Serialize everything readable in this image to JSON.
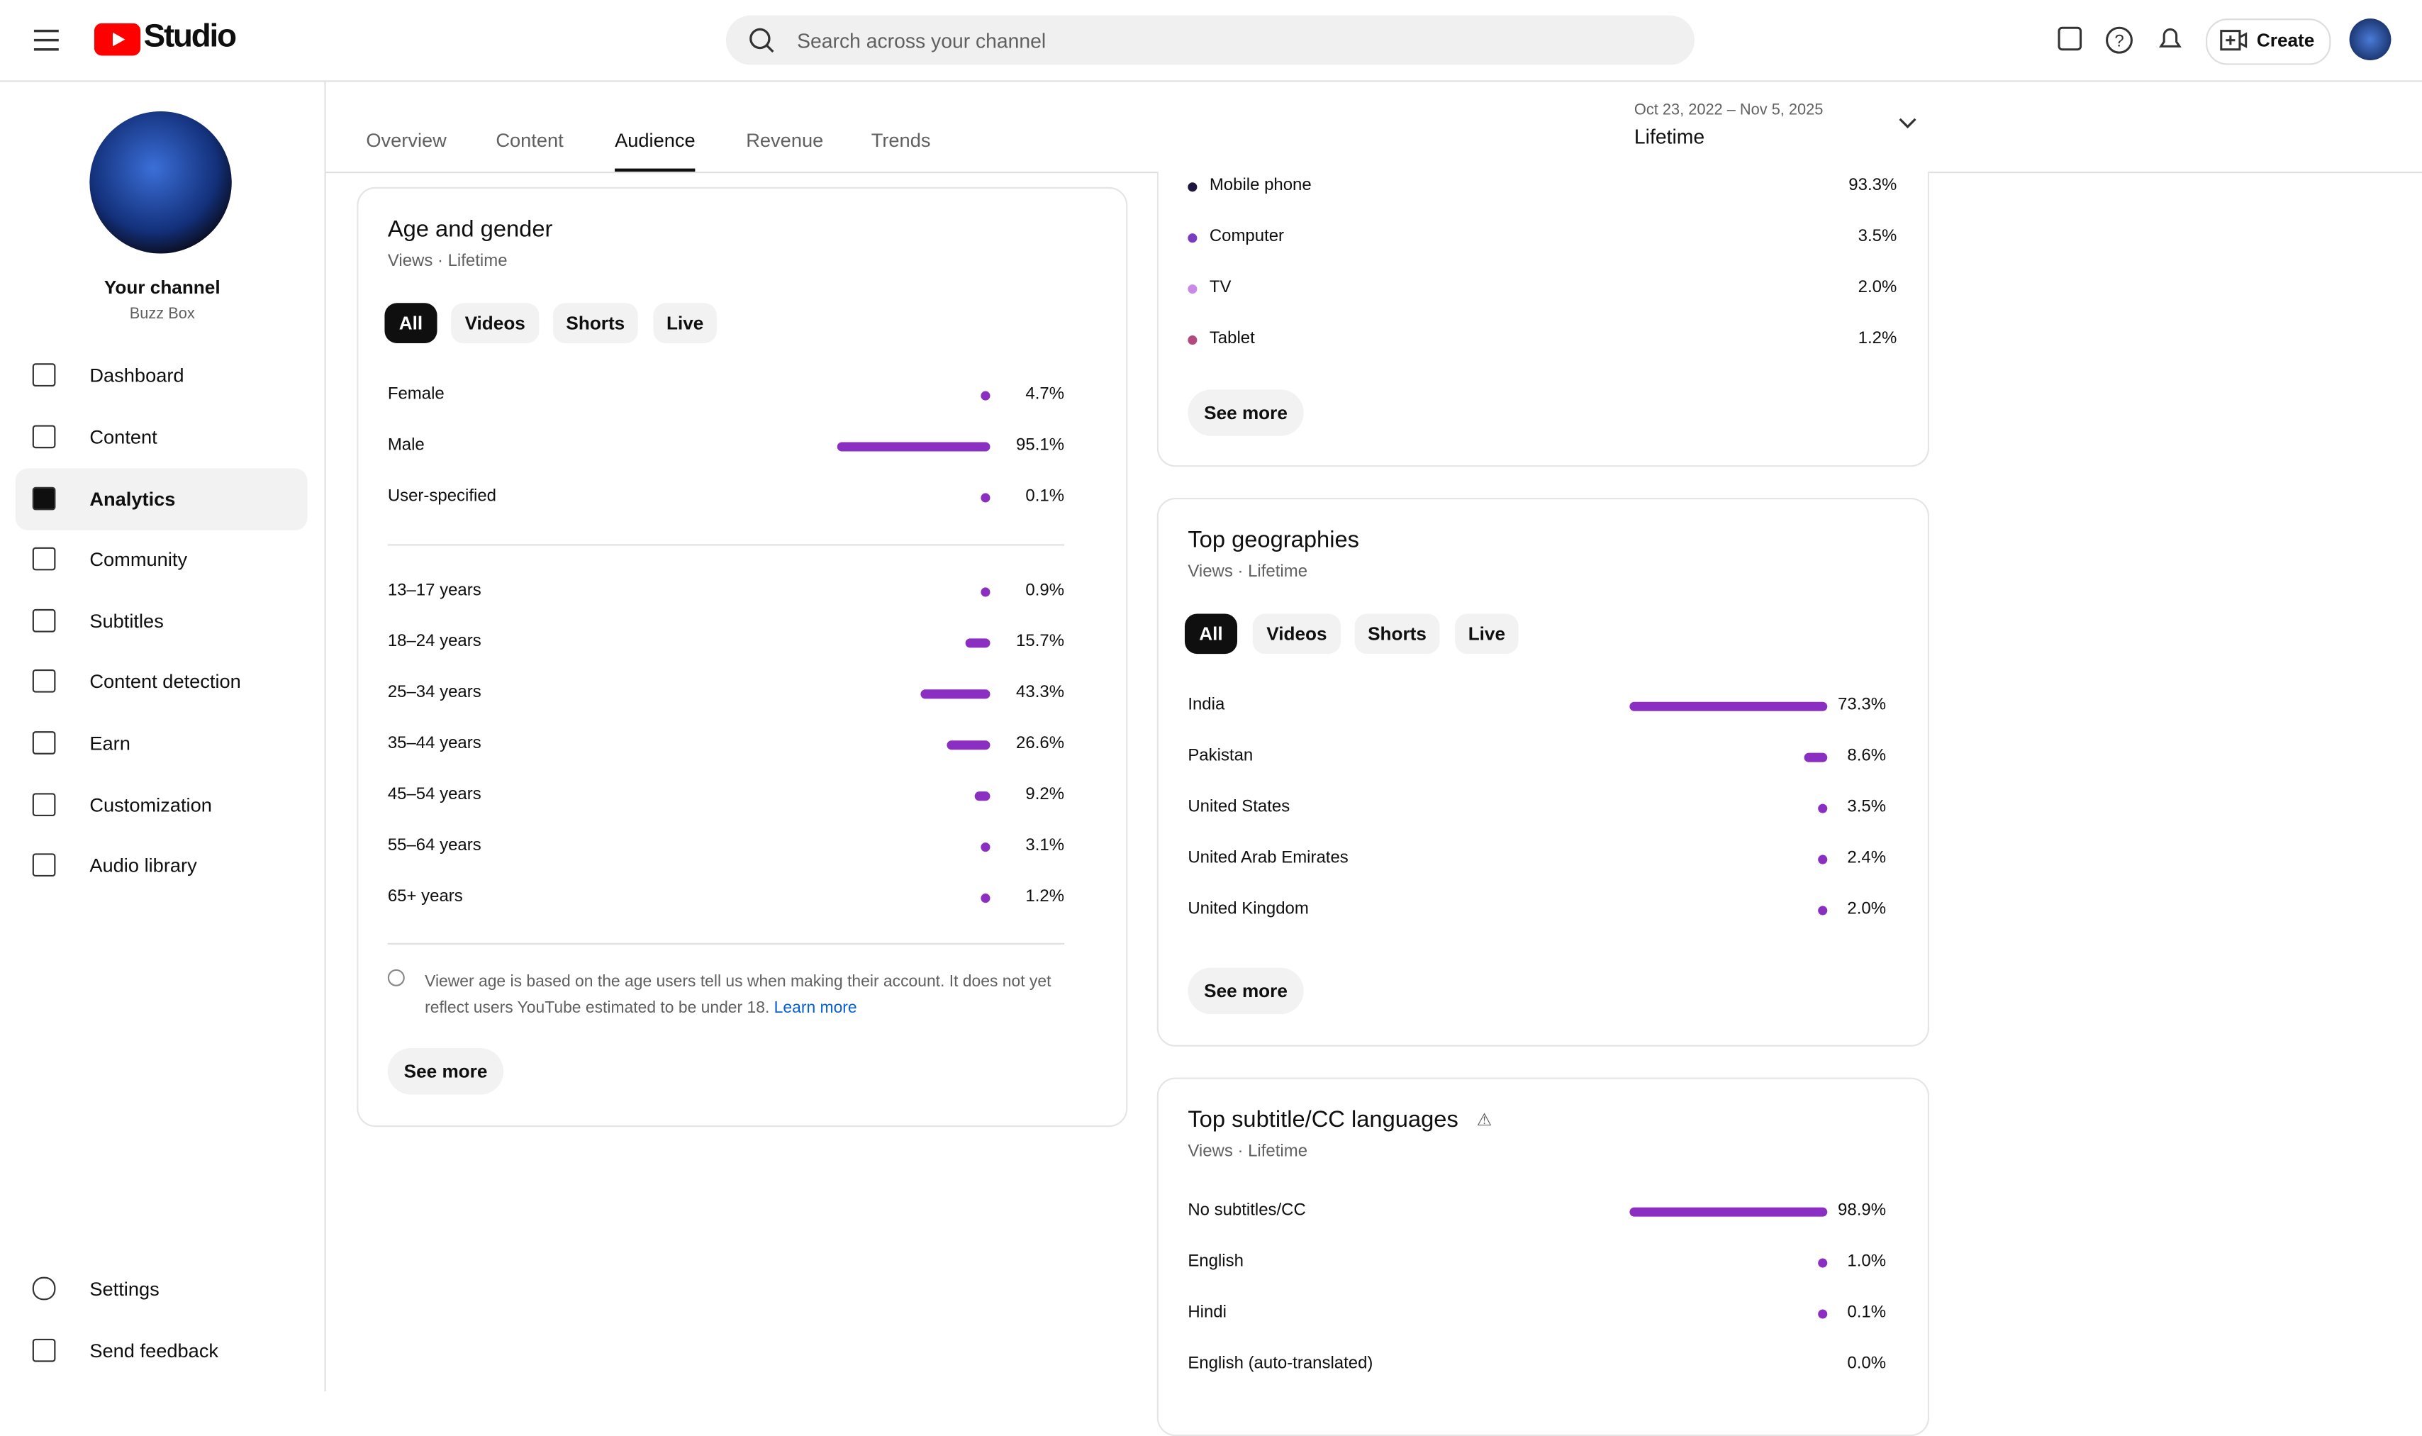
{
  "header": {
    "app_name": "Studio",
    "search_placeholder": "Search across your channel",
    "create": "Create"
  },
  "sidebar": {
    "channel_title": "Your channel",
    "channel_name": "Buzz Box",
    "nav": [
      "Dashboard",
      "Content",
      "Analytics",
      "Community",
      "Subtitles",
      "Content detection",
      "Earn",
      "Customization",
      "Audio library"
    ],
    "selected": 2,
    "footer": [
      "Settings",
      "Send feedback"
    ]
  },
  "tabs": {
    "items": [
      "Overview",
      "Content",
      "Audience",
      "Revenue",
      "Trends"
    ],
    "selected": 2
  },
  "date_range": {
    "range": "Oct 23, 2022 – Nov 5, 2025",
    "label": "Lifetime"
  },
  "age_gender": {
    "title": "Age and gender",
    "subtitle": "Views · Lifetime",
    "filters": [
      "All",
      "Videos",
      "Shorts",
      "Live"
    ],
    "gender": [
      {
        "label": "Female",
        "value": 4.7,
        "value_label": "4.7%"
      },
      {
        "label": "Male",
        "value": 95.1,
        "value_label": "95.1%"
      },
      {
        "label": "User-specified",
        "value": 0.1,
        "value_label": "0.1%"
      }
    ],
    "age": [
      {
        "label": "13–17 years",
        "value": 0.9,
        "value_label": "0.9%"
      },
      {
        "label": "18–24 years",
        "value": 15.7,
        "value_label": "15.7%"
      },
      {
        "label": "25–34 years",
        "value": 43.3,
        "value_label": "43.3%"
      },
      {
        "label": "35–44 years",
        "value": 26.6,
        "value_label": "26.6%"
      },
      {
        "label": "45–54 years",
        "value": 9.2,
        "value_label": "9.2%"
      },
      {
        "label": "55–64 years",
        "value": 3.1,
        "value_label": "3.1%"
      },
      {
        "label": "65+ years",
        "value": 1.2,
        "value_label": "1.2%"
      }
    ],
    "note": "Viewer age is based on the age users tell us when making their account. It does not yet reflect users YouTube estimated to be under 18.",
    "note_link": "Learn more",
    "see_more": "See more"
  },
  "devices": {
    "rows": [
      {
        "label": "Mobile phone",
        "color": "#1e1541",
        "value": 93.3,
        "value_label": "93.3%"
      },
      {
        "label": "Computer",
        "color": "#7a3cc0",
        "value": 3.5,
        "value_label": "3.5%"
      },
      {
        "label": "TV",
        "color": "#c88ae6",
        "value": 2.0,
        "value_label": "2.0%"
      },
      {
        "label": "Tablet",
        "color": "#b34a7e",
        "value": 1.2,
        "value_label": "1.2%"
      }
    ],
    "see_more": "See more"
  },
  "geographies": {
    "title": "Top geographies",
    "subtitle": "Views · Lifetime",
    "filters": [
      "All",
      "Videos",
      "Shorts",
      "Live"
    ],
    "rows": [
      {
        "label": "India",
        "value": 73.3,
        "value_label": "73.3%"
      },
      {
        "label": "Pakistan",
        "value": 8.6,
        "value_label": "8.6%"
      },
      {
        "label": "United States",
        "value": 3.5,
        "value_label": "3.5%"
      },
      {
        "label": "United Arab Emirates",
        "value": 2.4,
        "value_label": "2.4%"
      },
      {
        "label": "United Kingdom",
        "value": 2.0,
        "value_label": "2.0%"
      }
    ],
    "see_more": "See more"
  },
  "subtitles": {
    "title": "Top subtitle/CC languages",
    "subtitle": "Views · Lifetime",
    "rows": [
      {
        "label": "No subtitles/CC",
        "value": 98.9,
        "value_label": "98.9%"
      },
      {
        "label": "English",
        "value": 1.0,
        "value_label": "1.0%"
      },
      {
        "label": "Hindi",
        "value": 0.1,
        "value_label": "0.1%"
      },
      {
        "label": "English (auto-translated)",
        "value": 0.0,
        "value_label": "0.0%"
      }
    ]
  }
}
